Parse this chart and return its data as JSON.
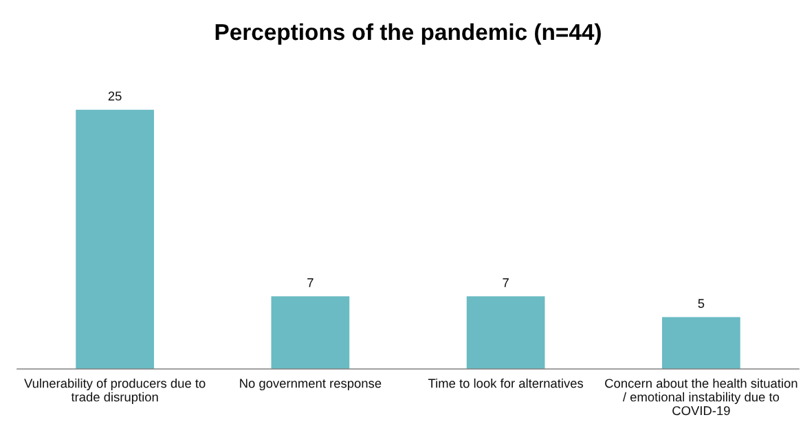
{
  "chart_data": {
    "type": "bar",
    "title": "Perceptions of the pandemic (n=44)",
    "categories": [
      "Vulnerability of producers due to\ntrade disruption",
      "No government response",
      "Time to look for alternatives",
      "Concern about the health situation\n/ emotional instability due to\nCOVID-19"
    ],
    "values": [
      25,
      7,
      7,
      5
    ],
    "color": "#6abbc3",
    "data_labels": true
  }
}
